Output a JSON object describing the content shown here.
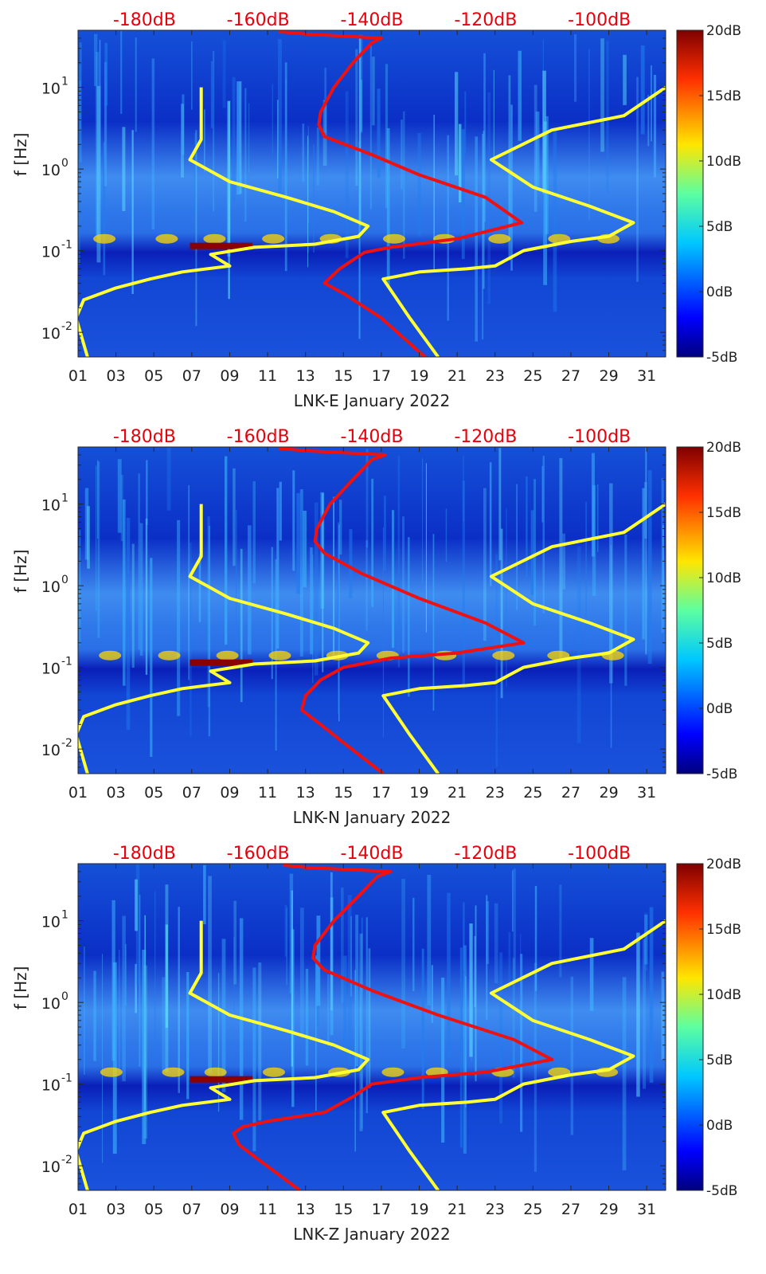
{
  "chart_data": [
    {
      "type": "heatmap",
      "xlabel": "LNK-E January 2022",
      "ylabel": "f [Hz]",
      "x_tick_labels": [
        "01",
        "03",
        "05",
        "07",
        "09",
        "11",
        "13",
        "15",
        "17",
        "19",
        "21",
        "23",
        "25",
        "27",
        "29",
        "31"
      ],
      "x_ticks": [
        1,
        3,
        5,
        7,
        9,
        11,
        13,
        15,
        17,
        19,
        21,
        23,
        25,
        27,
        29,
        31
      ],
      "xlim": [
        1,
        32
      ],
      "y_scale": "log",
      "ylim": [
        0.005,
        50
      ],
      "y_ticks": [
        0.01,
        0.1,
        1,
        10
      ],
      "y_tick_bases": [
        "10",
        "10",
        "10",
        "10"
      ],
      "y_tick_exponents": [
        "-2",
        "-1",
        "0",
        "1"
      ],
      "top_axis_labels": [
        "-180dB",
        "-160dB",
        "-140dB",
        "-120dB",
        "-100dB"
      ],
      "top_axis_positions": [
        4.5,
        10.5,
        16.5,
        22.5,
        28.5
      ],
      "colorbar": {
        "labels": [
          "20dB",
          "15dB",
          "10dB",
          "5dB",
          "0dB",
          "-5dB"
        ],
        "values": [
          20,
          15,
          10,
          5,
          0,
          -5
        ],
        "colormap": "jet"
      },
      "series": [
        {
          "color": "#ffff33",
          "points": [
            [
              1.5,
              0.005
            ],
            [
              0.9,
              0.015
            ],
            [
              1.3,
              0.025
            ],
            [
              3,
              0.035
            ],
            [
              4.8,
              0.045
            ],
            [
              6.5,
              0.055
            ],
            [
              9,
              0.065
            ],
            [
              8,
              0.09
            ],
            [
              10.3,
              0.11
            ],
            [
              13.5,
              0.12
            ],
            [
              15.8,
              0.15
            ],
            [
              16.3,
              0.2
            ],
            [
              14.5,
              0.3
            ],
            [
              12,
              0.45
            ],
            [
              9,
              0.7
            ],
            [
              6.9,
              1.3
            ],
            [
              7.5,
              2.3
            ],
            [
              7.5,
              10
            ]
          ]
        },
        {
          "color": "#ffff33",
          "points": [
            [
              20,
              0.005
            ],
            [
              18.5,
              0.015
            ],
            [
              17.1,
              0.045
            ],
            [
              19,
              0.055
            ],
            [
              21.5,
              0.06
            ],
            [
              23,
              0.065
            ],
            [
              24.5,
              0.1
            ],
            [
              27,
              0.13
            ],
            [
              29,
              0.15
            ],
            [
              30.3,
              0.22
            ],
            [
              28,
              0.35
            ],
            [
              25,
              0.6
            ],
            [
              22.8,
              1.3
            ],
            [
              26,
              3
            ],
            [
              29.8,
              4.5
            ],
            [
              32,
              10
            ]
          ]
        },
        {
          "color": "#ee1111",
          "points": [
            [
              19.3,
              0.005
            ],
            [
              17,
              0.015
            ],
            [
              15,
              0.03
            ],
            [
              14,
              0.04
            ],
            [
              14.8,
              0.06
            ],
            [
              16.1,
              0.095
            ],
            [
              17.5,
              0.11
            ],
            [
              21,
              0.14
            ],
            [
              24.4,
              0.22
            ],
            [
              22.5,
              0.45
            ],
            [
              19,
              0.85
            ],
            [
              16.5,
              1.5
            ],
            [
              14,
              2.5
            ],
            [
              13.7,
              3.5
            ],
            [
              13.8,
              5
            ],
            [
              14.5,
              10
            ],
            [
              15.5,
              20
            ],
            [
              16.5,
              35
            ],
            [
              17,
              40
            ],
            [
              13,
              45
            ],
            [
              11.6,
              48
            ]
          ]
        }
      ]
    },
    {
      "type": "heatmap",
      "xlabel": "LNK-N January 2022",
      "ylabel": "f [Hz]",
      "x_tick_labels": [
        "01",
        "03",
        "05",
        "07",
        "09",
        "11",
        "13",
        "15",
        "17",
        "19",
        "21",
        "23",
        "25",
        "27",
        "29",
        "31"
      ],
      "x_ticks": [
        1,
        3,
        5,
        7,
        9,
        11,
        13,
        15,
        17,
        19,
        21,
        23,
        25,
        27,
        29,
        31
      ],
      "xlim": [
        1,
        32
      ],
      "y_scale": "log",
      "ylim": [
        0.005,
        50
      ],
      "y_ticks": [
        0.01,
        0.1,
        1,
        10
      ],
      "y_tick_bases": [
        "10",
        "10",
        "10",
        "10"
      ],
      "y_tick_exponents": [
        "-2",
        "-1",
        "0",
        "1"
      ],
      "top_axis_labels": [
        "-180dB",
        "-160dB",
        "-140dB",
        "-120dB",
        "-100dB"
      ],
      "top_axis_positions": [
        4.5,
        10.5,
        16.5,
        22.5,
        28.5
      ],
      "colorbar": {
        "labels": [
          "20dB",
          "15dB",
          "10dB",
          "5dB",
          "0dB",
          "-5dB"
        ],
        "values": [
          20,
          15,
          10,
          5,
          0,
          -5
        ],
        "colormap": "jet"
      },
      "series": [
        {
          "color": "#ffff33",
          "points": [
            [
              1.5,
              0.005
            ],
            [
              0.9,
              0.015
            ],
            [
              1.3,
              0.025
            ],
            [
              3,
              0.035
            ],
            [
              4.8,
              0.045
            ],
            [
              6.5,
              0.055
            ],
            [
              9,
              0.065
            ],
            [
              8,
              0.09
            ],
            [
              10.3,
              0.11
            ],
            [
              13.5,
              0.12
            ],
            [
              15.8,
              0.15
            ],
            [
              16.3,
              0.2
            ],
            [
              14.5,
              0.3
            ],
            [
              12,
              0.45
            ],
            [
              9,
              0.7
            ],
            [
              6.9,
              1.3
            ],
            [
              7.5,
              2.3
            ],
            [
              7.5,
              10
            ]
          ]
        },
        {
          "color": "#ffff33",
          "points": [
            [
              20,
              0.005
            ],
            [
              18.5,
              0.015
            ],
            [
              17.1,
              0.045
            ],
            [
              19,
              0.055
            ],
            [
              21.5,
              0.06
            ],
            [
              23,
              0.065
            ],
            [
              24.5,
              0.1
            ],
            [
              27,
              0.13
            ],
            [
              29,
              0.15
            ],
            [
              30.3,
              0.22
            ],
            [
              28,
              0.35
            ],
            [
              25,
              0.6
            ],
            [
              22.8,
              1.3
            ],
            [
              26,
              3
            ],
            [
              29.8,
              4.5
            ],
            [
              32,
              10
            ]
          ]
        },
        {
          "color": "#ee1111",
          "points": [
            [
              17.1,
              0.005
            ],
            [
              15,
              0.012
            ],
            [
              13.8,
              0.02
            ],
            [
              12.8,
              0.03
            ],
            [
              13,
              0.045
            ],
            [
              13.8,
              0.07
            ],
            [
              15,
              0.1
            ],
            [
              17.5,
              0.13
            ],
            [
              21,
              0.15
            ],
            [
              24.5,
              0.2
            ],
            [
              22.5,
              0.35
            ],
            [
              19,
              0.7
            ],
            [
              16,
              1.4
            ],
            [
              14,
              2.5
            ],
            [
              13.5,
              3.5
            ],
            [
              13.6,
              5
            ],
            [
              14.3,
              10
            ],
            [
              15.5,
              20
            ],
            [
              16.5,
              35
            ],
            [
              17.2,
              40
            ],
            [
              13,
              45
            ],
            [
              11.6,
              48
            ]
          ]
        }
      ]
    },
    {
      "type": "heatmap",
      "xlabel": "LNK-Z January 2022",
      "ylabel": "f [Hz]",
      "x_tick_labels": [
        "01",
        "03",
        "05",
        "07",
        "09",
        "11",
        "13",
        "15",
        "17",
        "19",
        "21",
        "23",
        "25",
        "27",
        "29",
        "31"
      ],
      "x_ticks": [
        1,
        3,
        5,
        7,
        9,
        11,
        13,
        15,
        17,
        19,
        21,
        23,
        25,
        27,
        29,
        31
      ],
      "xlim": [
        1,
        32
      ],
      "y_scale": "log",
      "ylim": [
        0.005,
        50
      ],
      "y_ticks": [
        0.01,
        0.1,
        1,
        10
      ],
      "y_tick_bases": [
        "10",
        "10",
        "10",
        "10"
      ],
      "y_tick_exponents": [
        "-2",
        "-1",
        "0",
        "1"
      ],
      "top_axis_labels": [
        "-180dB",
        "-160dB",
        "-140dB",
        "-120dB",
        "-100dB"
      ],
      "top_axis_positions": [
        4.5,
        10.5,
        16.5,
        22.5,
        28.5
      ],
      "colorbar": {
        "labels": [
          "20dB",
          "15dB",
          "10dB",
          "5dB",
          "0dB",
          "-5dB"
        ],
        "values": [
          20,
          15,
          10,
          5,
          0,
          -5
        ],
        "colormap": "jet"
      },
      "series": [
        {
          "color": "#ffff33",
          "points": [
            [
              1.5,
              0.005
            ],
            [
              0.9,
              0.015
            ],
            [
              1.3,
              0.025
            ],
            [
              3,
              0.035
            ],
            [
              4.8,
              0.045
            ],
            [
              6.5,
              0.055
            ],
            [
              9,
              0.065
            ],
            [
              8,
              0.09
            ],
            [
              10.3,
              0.11
            ],
            [
              13.5,
              0.12
            ],
            [
              15.8,
              0.15
            ],
            [
              16.3,
              0.2
            ],
            [
              14.5,
              0.3
            ],
            [
              12,
              0.45
            ],
            [
              9,
              0.7
            ],
            [
              6.9,
              1.3
            ],
            [
              7.5,
              2.3
            ],
            [
              7.5,
              10
            ]
          ]
        },
        {
          "color": "#ffff33",
          "points": [
            [
              20,
              0.005
            ],
            [
              18.5,
              0.015
            ],
            [
              17.1,
              0.045
            ],
            [
              19,
              0.055
            ],
            [
              21.5,
              0.06
            ],
            [
              23,
              0.065
            ],
            [
              24.5,
              0.1
            ],
            [
              27,
              0.13
            ],
            [
              29,
              0.15
            ],
            [
              30.3,
              0.22
            ],
            [
              28,
              0.35
            ],
            [
              25,
              0.6
            ],
            [
              22.8,
              1.3
            ],
            [
              26,
              3
            ],
            [
              29.8,
              4.5
            ],
            [
              32,
              10
            ]
          ]
        },
        {
          "color": "#ee1111",
          "points": [
            [
              12.7,
              0.005
            ],
            [
              10.5,
              0.012
            ],
            [
              9.5,
              0.018
            ],
            [
              9.2,
              0.025
            ],
            [
              9.7,
              0.03
            ],
            [
              11,
              0.035
            ],
            [
              14,
              0.045
            ],
            [
              15.5,
              0.07
            ],
            [
              16.5,
              0.1
            ],
            [
              19,
              0.12
            ],
            [
              22.5,
              0.14
            ],
            [
              26,
              0.2
            ],
            [
              24,
              0.35
            ],
            [
              20,
              0.7
            ],
            [
              16.5,
              1.4
            ],
            [
              14,
              2.5
            ],
            [
              13.4,
              3.5
            ],
            [
              13.5,
              5
            ],
            [
              14.5,
              10
            ],
            [
              15.8,
              20
            ],
            [
              16.8,
              35
            ],
            [
              17.5,
              40
            ],
            [
              13,
              45
            ],
            [
              11.8,
              48
            ]
          ]
        }
      ]
    }
  ]
}
